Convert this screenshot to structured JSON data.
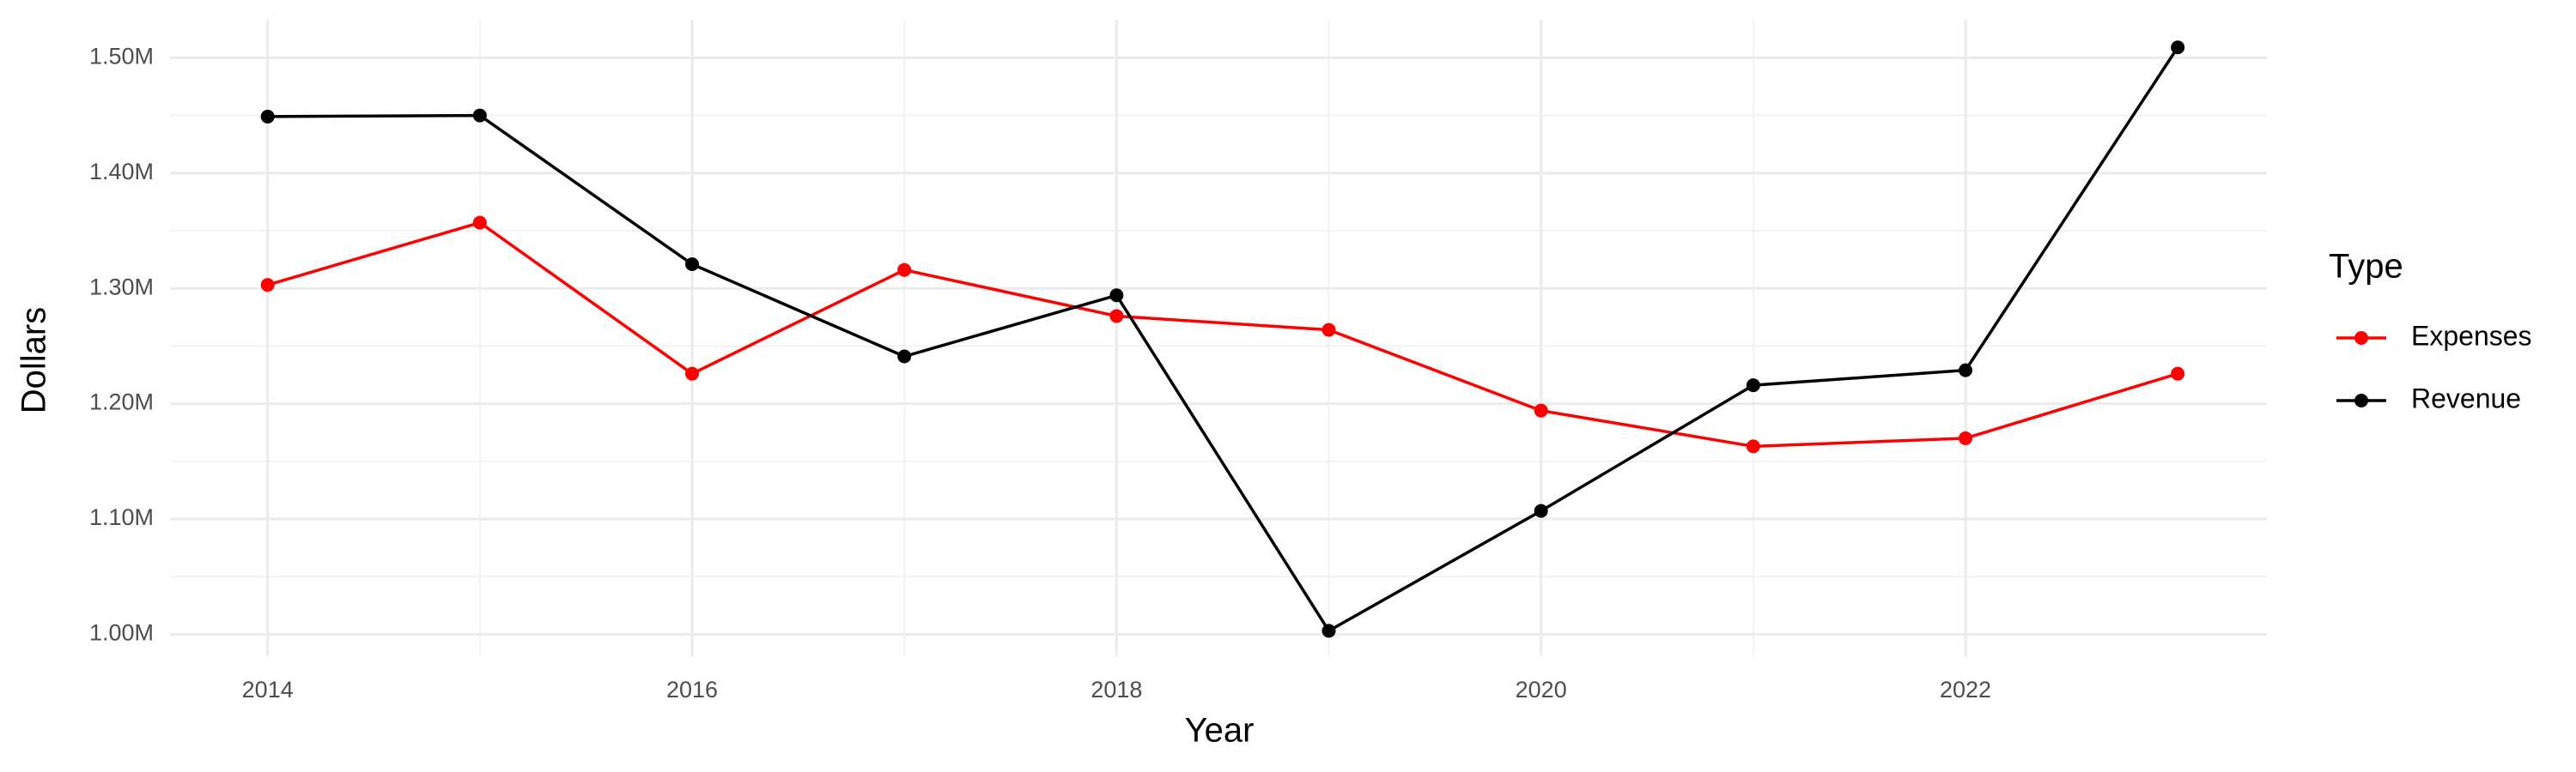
{
  "chart_data": {
    "type": "line",
    "x_label": "Year",
    "y_label": "Dollars",
    "x": [
      2014,
      2015,
      2016,
      2017,
      2018,
      2019,
      2020,
      2021,
      2022,
      2023
    ],
    "series": [
      {
        "name": "Expenses",
        "color": "#ff0000",
        "values": [
          1303000,
          1357000,
          1226000,
          1316000,
          1276000,
          1264000,
          1194000,
          1163000,
          1170000,
          1226000
        ]
      },
      {
        "name": "Revenue",
        "color": "#000000",
        "values": [
          1449000,
          1450000,
          1321000,
          1241000,
          1294000,
          1003000,
          1107000,
          1216000,
          1229000,
          1509000
        ]
      }
    ],
    "legend_title": "Type",
    "legend": "right",
    "xlim": [
      2013.54,
      2023.42
    ],
    "xticks": [
      2014,
      2016,
      2018,
      2020,
      2022
    ],
    "ylim": [
      981000,
      1533000
    ],
    "yticks": [
      {
        "value": 1000000,
        "label": "1.00M"
      },
      {
        "value": 1100000,
        "label": "1.10M"
      },
      {
        "value": 1200000,
        "label": "1.20M"
      },
      {
        "value": 1300000,
        "label": "1.30M"
      },
      {
        "value": 1400000,
        "label": "1.40M"
      },
      {
        "value": 1500000,
        "label": "1.50M"
      }
    ],
    "grid": true
  }
}
